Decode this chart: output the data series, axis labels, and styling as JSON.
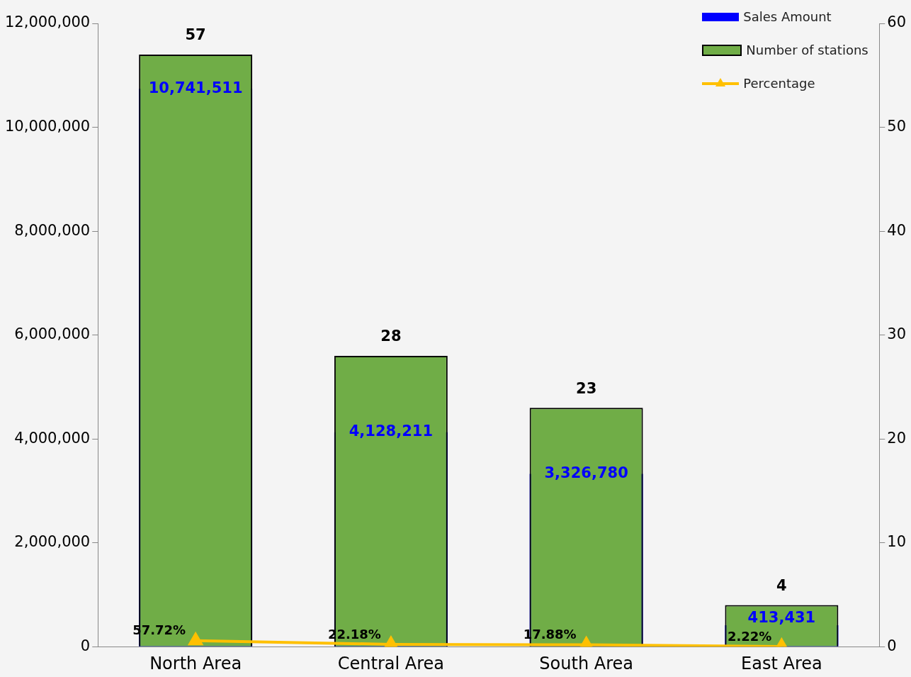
{
  "chart_data": {
    "type": "bar",
    "categories": [
      "North Area",
      "Central Area",
      "South Area",
      "East Area"
    ],
    "series": [
      {
        "name": "Sales Amount",
        "axis": "y",
        "color": "#0000ff",
        "values": [
          10741511,
          4128211,
          3326780,
          413431
        ],
        "value_labels": [
          "10,741,511",
          "4,128,211",
          "3,326,780",
          "413,431"
        ]
      },
      {
        "name": "Number of stations",
        "axis": "y2",
        "color": "#70ad47",
        "values": [
          57,
          28,
          23,
          4
        ],
        "value_labels": [
          "57",
          "28",
          "23",
          "4"
        ]
      },
      {
        "name": "Percentage",
        "type": "line",
        "axis": "y2",
        "color": "#ffc000",
        "marker": "triangle",
        "values": [
          0.5772,
          0.2218,
          0.1788,
          0.0222
        ],
        "value_labels": [
          "57.72%",
          "22.18%",
          "17.88%",
          "2.22%"
        ]
      }
    ],
    "ylim": [
      0,
      12000000
    ],
    "yticks": [
      {
        "value": 0,
        "label": "0"
      },
      {
        "value": 2000000,
        "label": "2,000,000"
      },
      {
        "value": 4000000,
        "label": "4,000,000"
      },
      {
        "value": 6000000,
        "label": "6,000,000"
      },
      {
        "value": 8000000,
        "label": "8,000,000"
      },
      {
        "value": 10000000,
        "label": "10,000,000"
      },
      {
        "value": 12000000,
        "label": "12,000,000"
      }
    ],
    "y2lim": [
      0,
      60
    ],
    "y2ticks": [
      0,
      10,
      20,
      30,
      40,
      50,
      60
    ],
    "grid": false,
    "legend": "top right"
  }
}
